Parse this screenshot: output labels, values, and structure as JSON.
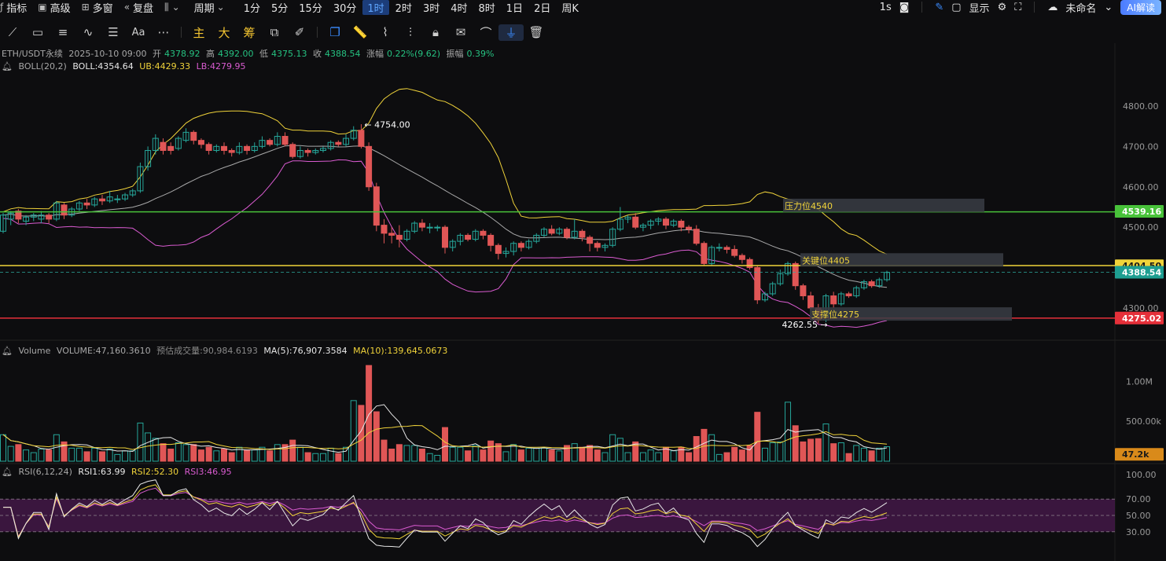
{
  "topbar": {
    "items": [
      {
        "icon": "indicator-icon",
        "label": "指标"
      },
      {
        "icon": "calendar-icon",
        "label": "高级"
      },
      {
        "icon": "grid-icon",
        "label": "多窗"
      },
      {
        "icon": "replay-icon",
        "label": "复盘"
      }
    ],
    "period_label": "周期",
    "intervals": [
      "1分",
      "5分",
      "15分",
      "30分",
      "1时",
      "2时",
      "3时",
      "4时",
      "8时",
      "1日",
      "2日",
      "周K"
    ],
    "active_interval": "1时",
    "right": {
      "interval": "1s",
      "display": "显示",
      "layout_name": "未命名",
      "ai_label": "AI解读"
    }
  },
  "toolbar": {
    "tools": [
      "line-tool-icon",
      "rect-tool-icon",
      "lines-tool-icon",
      "wave-tool-icon",
      "list-tool-icon",
      "text-tool-icon",
      "more-icon",
      "主",
      "大",
      "筹",
      "edit-icon",
      "pen-icon",
      "copy-icon",
      "ruler-icon",
      "measure-icon",
      "bars-icon",
      "lock-icon",
      "note-icon",
      "magnet-icon",
      "filter-icon",
      "trash-icon"
    ]
  },
  "header": {
    "symbol": "ETH/USDT永续",
    "datetime": "2025-10-10 09:00",
    "open_label": "开",
    "open": "4378.92",
    "high_label": "高",
    "high": "4392.00",
    "low_label": "低",
    "low": "4375.13",
    "close_label": "收",
    "close": "4388.54",
    "chg_label": "涨幅",
    "chg": "0.22%(9.62)",
    "amp_label": "振幅",
    "amp": "0.39%"
  },
  "boll": {
    "label": "BOLL(20,2)",
    "mid": "BOLL:4354.64",
    "ub": "UB:4429.33",
    "lb": "LB:4279.95"
  },
  "volume_header": {
    "label": "Volume",
    "vol": "VOLUME:47,160.3610",
    "est": "预估成交量:90,984.6193",
    "ma5": "MA(5):76,907.3584",
    "ma10": "MA(10):139,645.0673"
  },
  "rsi_header": {
    "label": "RSI(6,12,24)",
    "rsi1": "RSI1:63.99",
    "rsi2": "RSI2:52.30",
    "rsi3": "RSI3:46.95"
  },
  "price_axis": [
    "4800.00",
    "4700.00",
    "4600.00",
    "4500.00",
    "4300.00"
  ],
  "volume_axis": [
    "1.00M",
    "500.00k"
  ],
  "rsi_axis": [
    "100.00",
    "70.00",
    "50.00",
    "30.00"
  ],
  "price_tags": {
    "green": "4539.16",
    "yellow": "4404.50",
    "current": "4388.54",
    "red": "4275.02",
    "volume": "47.2k"
  },
  "annotations": {
    "high": "4754.00",
    "low": "4262.55",
    "resistance": "压力位4540",
    "key": "关键位4405",
    "support": "支撑位4275"
  },
  "colors": {
    "up": "#26a69a",
    "down": "#e05656",
    "boll_mid": "#cfcfcf",
    "boll_ub": "#f0d33a",
    "boll_lb": "#d95bd0",
    "green_line": "#48c23a",
    "yellow_line": "#f0d33a",
    "red_line": "#e5303a"
  },
  "chart_data": {
    "type": "candlestick",
    "price_range": [
      4226,
      4868
    ],
    "levels": {
      "resistance": 4540,
      "key": 4405,
      "support": 4275
    },
    "candles": [
      [
        4490,
        4530,
        4485,
        4535
      ],
      [
        4520,
        4535,
        4505,
        4540
      ],
      [
        4540,
        4520,
        4510,
        4545
      ],
      [
        4515,
        4525,
        4505,
        4530
      ],
      [
        4525,
        4530,
        4515,
        4535
      ],
      [
        4520,
        4530,
        4510,
        4540
      ],
      [
        4530,
        4520,
        4510,
        4535
      ],
      [
        4520,
        4560,
        4515,
        4565
      ],
      [
        4555,
        4530,
        4520,
        4560
      ],
      [
        4530,
        4545,
        4525,
        4550
      ],
      [
        4545,
        4560,
        4540,
        4565
      ],
      [
        4560,
        4555,
        4545,
        4570
      ],
      [
        4555,
        4570,
        4550,
        4575
      ],
      [
        4570,
        4565,
        4555,
        4580
      ],
      [
        4565,
        4575,
        4560,
        4590
      ],
      [
        4570,
        4570,
        4560,
        4580
      ],
      [
        4570,
        4580,
        4565,
        4585
      ],
      [
        4580,
        4590,
        4575,
        4595
      ],
      [
        4590,
        4650,
        4585,
        4660
      ],
      [
        4650,
        4690,
        4640,
        4700
      ],
      [
        4690,
        4720,
        4680,
        4730
      ],
      [
        4710,
        4690,
        4680,
        4720
      ],
      [
        4700,
        4690,
        4680,
        4710
      ],
      [
        4695,
        4720,
        4690,
        4725
      ],
      [
        4715,
        4735,
        4710,
        4745
      ],
      [
        4735,
        4715,
        4705,
        4740
      ],
      [
        4715,
        4705,
        4695,
        4720
      ],
      [
        4705,
        4690,
        4680,
        4710
      ],
      [
        4690,
        4700,
        4685,
        4705
      ],
      [
        4700,
        4690,
        4680,
        4710
      ],
      [
        4690,
        4685,
        4675,
        4695
      ],
      [
        4685,
        4700,
        4680,
        4710
      ],
      [
        4700,
        4690,
        4680,
        4705
      ],
      [
        4690,
        4700,
        4685,
        4710
      ],
      [
        4700,
        4715,
        4695,
        4725
      ],
      [
        4715,
        4705,
        4700,
        4720
      ],
      [
        4705,
        4725,
        4700,
        4735
      ],
      [
        4725,
        4705,
        4700,
        4735
      ],
      [
        4705,
        4675,
        4670,
        4710
      ],
      [
        4675,
        4690,
        4670,
        4700
      ],
      [
        4690,
        4685,
        4675,
        4695
      ],
      [
        4685,
        4690,
        4680,
        4695
      ],
      [
        4690,
        4695,
        4685,
        4700
      ],
      [
        4695,
        4710,
        4690,
        4715
      ],
      [
        4710,
        4705,
        4700,
        4715
      ],
      [
        4705,
        4720,
        4700,
        4730
      ],
      [
        4720,
        4740,
        4715,
        4750
      ],
      [
        4740,
        4700,
        4695,
        4755
      ],
      [
        4700,
        4600,
        4590,
        4710
      ],
      [
        4600,
        4505,
        4490,
        4610
      ],
      [
        4505,
        4485,
        4460,
        4520
      ],
      [
        4485,
        4480,
        4460,
        4500
      ],
      [
        4480,
        4470,
        4450,
        4505
      ],
      [
        4470,
        4490,
        4465,
        4495
      ],
      [
        4490,
        4510,
        4485,
        4515
      ],
      [
        4510,
        4500,
        4490,
        4520
      ],
      [
        4500,
        4500,
        4485,
        4510
      ],
      [
        4500,
        4500,
        4490,
        4505
      ],
      [
        4500,
        4450,
        4435,
        4505
      ],
      [
        4450,
        4465,
        4440,
        4470
      ],
      [
        4465,
        4480,
        4455,
        4485
      ],
      [
        4480,
        4470,
        4465,
        4485
      ],
      [
        4470,
        4490,
        4465,
        4495
      ],
      [
        4490,
        4480,
        4470,
        4495
      ],
      [
        4480,
        4455,
        4440,
        4485
      ],
      [
        4455,
        4435,
        4420,
        4460
      ],
      [
        4435,
        4440,
        4425,
        4450
      ],
      [
        4440,
        4460,
        4430,
        4465
      ],
      [
        4460,
        4450,
        4440,
        4465
      ],
      [
        4450,
        4465,
        4445,
        4470
      ],
      [
        4465,
        4480,
        4460,
        4485
      ],
      [
        4480,
        4495,
        4475,
        4500
      ],
      [
        4495,
        4485,
        4480,
        4505
      ],
      [
        4485,
        4495,
        4480,
        4500
      ],
      [
        4495,
        4475,
        4470,
        4500
      ],
      [
        4475,
        4490,
        4470,
        4520
      ],
      [
        4490,
        4475,
        4465,
        4495
      ],
      [
        4475,
        4460,
        4440,
        4480
      ],
      [
        4460,
        4450,
        4440,
        4465
      ],
      [
        4450,
        4455,
        4440,
        4460
      ],
      [
        4455,
        4495,
        4450,
        4500
      ],
      [
        4495,
        4520,
        4490,
        4550
      ],
      [
        4520,
        4525,
        4510,
        4530
      ],
      [
        4525,
        4500,
        4495,
        4535
      ],
      [
        4500,
        4505,
        4490,
        4510
      ],
      [
        4505,
        4515,
        4495,
        4520
      ],
      [
        4515,
        4520,
        4505,
        4525
      ],
      [
        4520,
        4505,
        4495,
        4525
      ],
      [
        4505,
        4515,
        4500,
        4520
      ],
      [
        4515,
        4500,
        4490,
        4520
      ],
      [
        4500,
        4495,
        4485,
        4505
      ],
      [
        4495,
        4460,
        4455,
        4505
      ],
      [
        4460,
        4410,
        4405,
        4465
      ],
      [
        4410,
        4450,
        4405,
        4455
      ],
      [
        4450,
        4450,
        4440,
        4460
      ],
      [
        4450,
        4445,
        4435,
        4455
      ],
      [
        4445,
        4430,
        4425,
        4455
      ],
      [
        4430,
        4420,
        4410,
        4435
      ],
      [
        4420,
        4400,
        4395,
        4425
      ],
      [
        4400,
        4320,
        4310,
        4405
      ],
      [
        4320,
        4335,
        4315,
        4340
      ],
      [
        4335,
        4360,
        4330,
        4365
      ],
      [
        4360,
        4385,
        4355,
        4395
      ],
      [
        4385,
        4410,
        4380,
        4415
      ],
      [
        4410,
        4355,
        4345,
        4415
      ],
      [
        4355,
        4330,
        4320,
        4360
      ],
      [
        4330,
        4300,
        4295,
        4340
      ],
      [
        4300,
        4270,
        4262,
        4310
      ],
      [
        4270,
        4330,
        4265,
        4335
      ],
      [
        4330,
        4310,
        4300,
        4340
      ],
      [
        4310,
        4335,
        4305,
        4340
      ],
      [
        4335,
        4330,
        4325,
        4340
      ],
      [
        4330,
        4350,
        4325,
        4355
      ],
      [
        4350,
        4365,
        4345,
        4370
      ],
      [
        4365,
        4355,
        4350,
        4370
      ],
      [
        4355,
        4370,
        4350,
        4375
      ],
      [
        4370,
        4388,
        4365,
        4392
      ]
    ],
    "volume_range": [
      0,
      1300000
    ],
    "volume_ma_note": "MA(5) white, MA(10) yellow",
    "rsi_range": [
      0,
      100
    ],
    "rsi_levels": [
      70,
      50,
      30
    ]
  }
}
